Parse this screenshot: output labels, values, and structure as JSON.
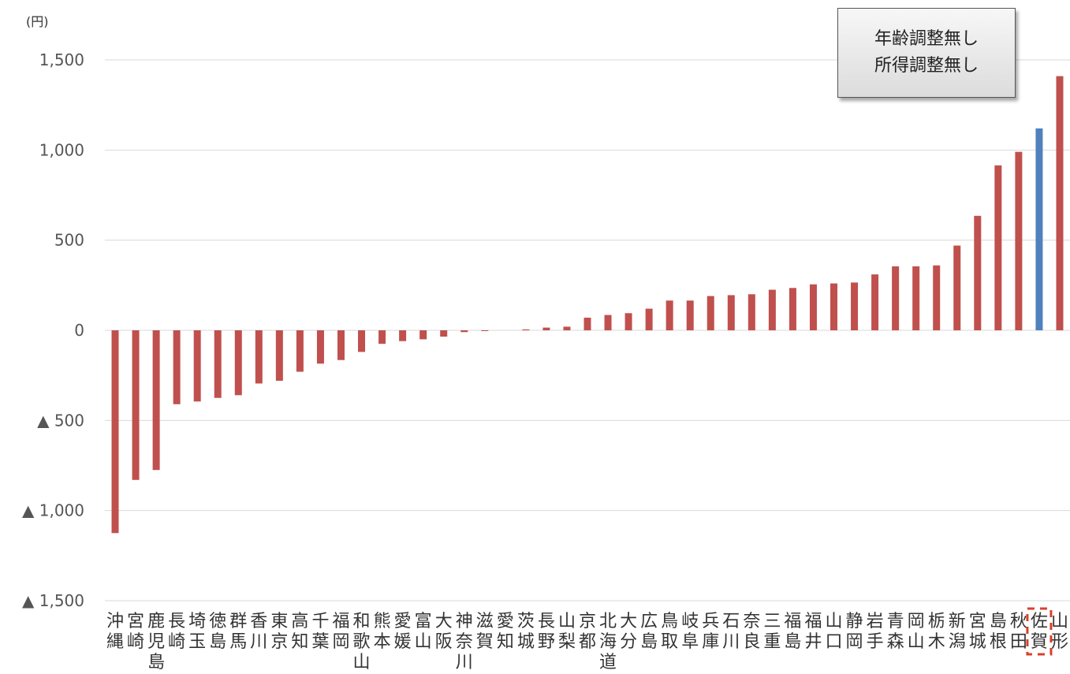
{
  "chart_data": {
    "type": "bar",
    "unit": "(円)",
    "ylim": [
      -1500,
      1500
    ],
    "yticks": [
      {
        "value": 1500,
        "label": "1,500"
      },
      {
        "value": 1000,
        "label": "1,000"
      },
      {
        "value": 500,
        "label": "500"
      },
      {
        "value": 0,
        "label": "0"
      },
      {
        "value": -500,
        "label": "▲ 500"
      },
      {
        "value": -1000,
        "label": "▲ 1,000"
      },
      {
        "value": -1500,
        "label": "▲ 1,500"
      }
    ],
    "grid": true,
    "categories": [
      "沖縄",
      "宮崎",
      "鹿児島",
      "長崎",
      "埼玉",
      "徳島",
      "群馬",
      "香川",
      "東京",
      "高知",
      "千葉",
      "福岡",
      "和歌山",
      "熊本",
      "愛媛",
      "富山",
      "大阪",
      "神奈川",
      "滋賀",
      "愛知",
      "茨城",
      "長野",
      "山梨",
      "京都",
      "北海道",
      "大分",
      "広島",
      "鳥取",
      "岐阜",
      "兵庫",
      "石川",
      "奈良",
      "三重",
      "福島",
      "福井",
      "山口",
      "静岡",
      "岩手",
      "青森",
      "岡山",
      "栃木",
      "新潟",
      "宮城",
      "島根",
      "秋田",
      "佐賀",
      "山形"
    ],
    "values": [
      -1125,
      -830,
      -775,
      -410,
      -395,
      -375,
      -360,
      -295,
      -280,
      -230,
      -185,
      -165,
      -120,
      -75,
      -60,
      -50,
      -35,
      -10,
      -3,
      0,
      5,
      15,
      20,
      70,
      85,
      95,
      120,
      165,
      165,
      190,
      195,
      200,
      225,
      235,
      255,
      260,
      265,
      310,
      355,
      355,
      360,
      470,
      635,
      915,
      990,
      1120,
      1410
    ],
    "highlight_index": 45,
    "colors": {
      "bar": "#c0504d",
      "highlight": "#4f81bd",
      "grid": "#d9d9d9",
      "highlight_box": "#d9402b"
    },
    "annotation": [
      "年齢調整無し",
      "所得調整無し"
    ]
  }
}
